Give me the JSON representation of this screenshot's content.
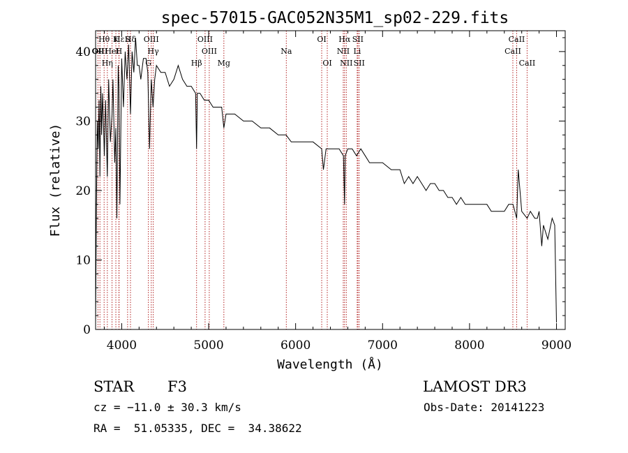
{
  "chart_data": {
    "type": "line",
    "title": "spec-57015-GAC052N35M1_sp02-229.fits",
    "xlabel": "Wavelength (Å)",
    "ylabel": "Flux (relative)",
    "xlim": [
      3700,
      9100
    ],
    "ylim": [
      0,
      43
    ],
    "x_ticks": [
      4000,
      5000,
      6000,
      7000,
      8000,
      9000
    ],
    "y_ticks": [
      0,
      10,
      20,
      30,
      40
    ],
    "grid": false,
    "series": [
      {
        "name": "flux",
        "x": [
          3700,
          3710,
          3720,
          3730,
          3740,
          3750,
          3760,
          3770,
          3780,
          3790,
          3800,
          3815,
          3835,
          3850,
          3870,
          3889,
          3900,
          3920,
          3933,
          3945,
          3960,
          3968,
          3980,
          4000,
          4020,
          4040,
          4060,
          4080,
          4101,
          4120,
          4140,
          4160,
          4180,
          4200,
          4220,
          4250,
          4280,
          4300,
          4320,
          4340,
          4360,
          4380,
          4400,
          4450,
          4500,
          4550,
          4600,
          4650,
          4700,
          4750,
          4800,
          4850,
          4861,
          4870,
          4900,
          4950,
          5000,
          5050,
          5100,
          5150,
          5175,
          5200,
          5300,
          5400,
          5500,
          5600,
          5700,
          5800,
          5890,
          5950,
          6000,
          6100,
          6200,
          6300,
          6320,
          6350,
          6400,
          6450,
          6500,
          6550,
          6563,
          6570,
          6600,
          6650,
          6700,
          6750,
          6800,
          6850,
          6900,
          7000,
          7100,
          7200,
          7250,
          7300,
          7350,
          7400,
          7450,
          7500,
          7550,
          7600,
          7650,
          7700,
          7750,
          7800,
          7850,
          7900,
          7950,
          8000,
          8050,
          8100,
          8150,
          8200,
          8250,
          8300,
          8350,
          8400,
          8450,
          8500,
          8542,
          8560,
          8600,
          8662,
          8700,
          8750,
          8780,
          8800,
          8830,
          8850,
          8900,
          8950,
          8980,
          9000
        ],
        "values": [
          1,
          18,
          30,
          26,
          33,
          22,
          35,
          28,
          34,
          30,
          25,
          33,
          22,
          36,
          27,
          31,
          36,
          24,
          29,
          16,
          38,
          35,
          18,
          39,
          32,
          40,
          36,
          41,
          31,
          40,
          37,
          42,
          38,
          38,
          36,
          39,
          39,
          37,
          26,
          36,
          32,
          36,
          38,
          37,
          37,
          35,
          36,
          38,
          36,
          35,
          35,
          34,
          26,
          34,
          34,
          33,
          33,
          32,
          32,
          32,
          29,
          31,
          31,
          30,
          30,
          29,
          29,
          28,
          28,
          27,
          27,
          27,
          27,
          26,
          23,
          26,
          26,
          26,
          26,
          25,
          18,
          25,
          26,
          26,
          25,
          26,
          25,
          24,
          24,
          24,
          23,
          23,
          21,
          22,
          21,
          22,
          21,
          20,
          21,
          21,
          20,
          20,
          19,
          19,
          18,
          19,
          18,
          18,
          18,
          18,
          18,
          18,
          17,
          17,
          17,
          17,
          18,
          18,
          16,
          23,
          17,
          16,
          17,
          16,
          16,
          17,
          12,
          15,
          13,
          16,
          15,
          1
        ]
      }
    ],
    "lines": [
      {
        "label": "Hθ",
        "wavelength": 3798
      },
      {
        "label": "OII",
        "wavelength": 3727
      },
      {
        "label": "Hη",
        "wavelength": 3835
      },
      {
        "label": "OIII",
        "wavelength": 3750
      },
      {
        "label": "HeI",
        "wavelength": 3889
      },
      {
        "label": "Hε",
        "wavelength": 3970
      },
      {
        "label": "K",
        "wavelength": 3933
      },
      {
        "label": "H",
        "wavelength": 3968
      },
      {
        "label": "S",
        "wavelength": 4068
      },
      {
        "label": "Hδ",
        "wavelength": 4101
      },
      {
        "label": "OIII",
        "wavelength": 4340
      },
      {
        "label": "Hγ",
        "wavelength": 4363
      },
      {
        "label": "G",
        "wavelength": 4307
      },
      {
        "label": "Hβ",
        "wavelength": 4861
      },
      {
        "label": "OIII",
        "wavelength": 4959
      },
      {
        "label": "OIII",
        "wavelength": 5007
      },
      {
        "label": "Mg",
        "wavelength": 5175
      },
      {
        "label": "Na",
        "wavelength": 5893
      },
      {
        "label": "OI",
        "wavelength": 6300
      },
      {
        "label": "OI",
        "wavelength": 6364
      },
      {
        "label": "Hα",
        "wavelength": 6563
      },
      {
        "label": "NII",
        "wavelength": 6548
      },
      {
        "label": "NII",
        "wavelength": 6583
      },
      {
        "label": "SII",
        "wavelength": 6716
      },
      {
        "label": "Li",
        "wavelength": 6708
      },
      {
        "label": "SII",
        "wavelength": 6731
      },
      {
        "label": "CaII",
        "wavelength": 8542
      },
      {
        "label": "CaII",
        "wavelength": 8498
      },
      {
        "label": "CaII",
        "wavelength": 8662
      }
    ]
  },
  "info": {
    "object_type": "STAR",
    "subclass": "F3",
    "survey": "LAMOST DR3",
    "cz": "cz = −11.0 ± 30.3 km/s",
    "obs_date": "Obs-Date: 20141223",
    "coords": "RA =  51.05335, DEC =  34.38622"
  },
  "colors": {
    "background": "#ffffff",
    "axis": "#000000",
    "spectrum": "#000000",
    "line_marker": "#b22222"
  }
}
